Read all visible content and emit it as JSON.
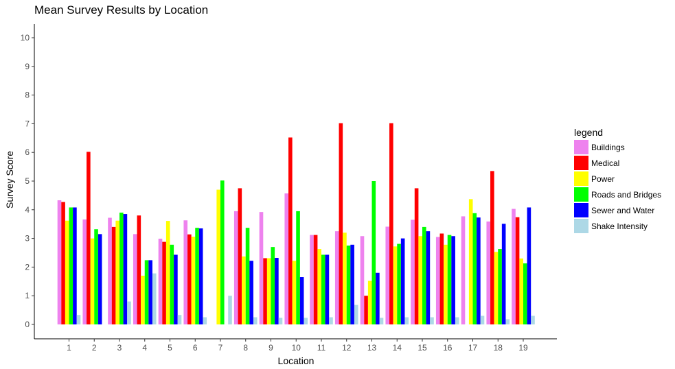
{
  "chart_data": {
    "type": "bar",
    "title": "Mean Survey Results by Location",
    "xlabel": "Location",
    "ylabel": "Survey Score",
    "ylim": [
      0,
      10
    ],
    "yticks": [
      "0",
      "1",
      "2",
      "3",
      "4",
      "5",
      "6",
      "7",
      "8",
      "9",
      "10"
    ],
    "categories": [
      "1",
      "2",
      "3",
      "4",
      "5",
      "6",
      "7",
      "8",
      "9",
      "10",
      "11",
      "12",
      "13",
      "14",
      "15",
      "16",
      "17",
      "18",
      "19"
    ],
    "legend_title": "legend",
    "legend_position": "right",
    "grid": false,
    "series": [
      {
        "name": "Buildings",
        "color": "#ee82ee",
        "values": [
          4.33,
          3.66,
          3.72,
          3.15,
          2.99,
          3.63,
          null,
          3.95,
          3.92,
          4.57,
          3.12,
          3.25,
          3.08,
          3.41,
          3.65,
          3.05,
          3.77,
          3.59,
          4.03
        ]
      },
      {
        "name": "Medical",
        "color": "#ff0000",
        "values": [
          4.27,
          6.02,
          3.4,
          3.8,
          2.88,
          3.14,
          null,
          4.75,
          2.31,
          6.52,
          3.12,
          7.02,
          1.0,
          7.02,
          4.75,
          3.17,
          null,
          5.35,
          3.74
        ]
      },
      {
        "name": "Power",
        "color": "#ffff00",
        "values": [
          3.62,
          3.0,
          3.62,
          1.7,
          3.61,
          3.06,
          4.7,
          2.37,
          2.31,
          2.22,
          2.63,
          3.2,
          1.52,
          2.72,
          3.08,
          2.78,
          4.37,
          2.53,
          2.3
        ]
      },
      {
        "name": "Roads and Bridges",
        "color": "#00ff00",
        "values": [
          4.08,
          3.32,
          3.9,
          2.24,
          2.78,
          3.37,
          5.02,
          3.37,
          2.7,
          3.95,
          2.43,
          2.75,
          5.0,
          2.81,
          3.4,
          3.12,
          3.88,
          2.63,
          2.13
        ]
      },
      {
        "name": "Sewer and Water",
        "color": "#0000ff",
        "values": [
          4.08,
          3.15,
          3.85,
          2.24,
          2.43,
          3.35,
          null,
          2.22,
          2.32,
          1.65,
          2.43,
          2.78,
          1.8,
          3.0,
          3.25,
          3.08,
          3.73,
          3.51,
          4.08
        ]
      },
      {
        "name": "Shake Intensity",
        "color": "#add8e6",
        "values": [
          0.33,
          null,
          0.8,
          1.78,
          0.33,
          0.25,
          1.0,
          0.25,
          0.23,
          0.23,
          0.25,
          0.68,
          0.23,
          0.25,
          0.25,
          0.25,
          0.3,
          0.18,
          0.3
        ]
      }
    ]
  }
}
